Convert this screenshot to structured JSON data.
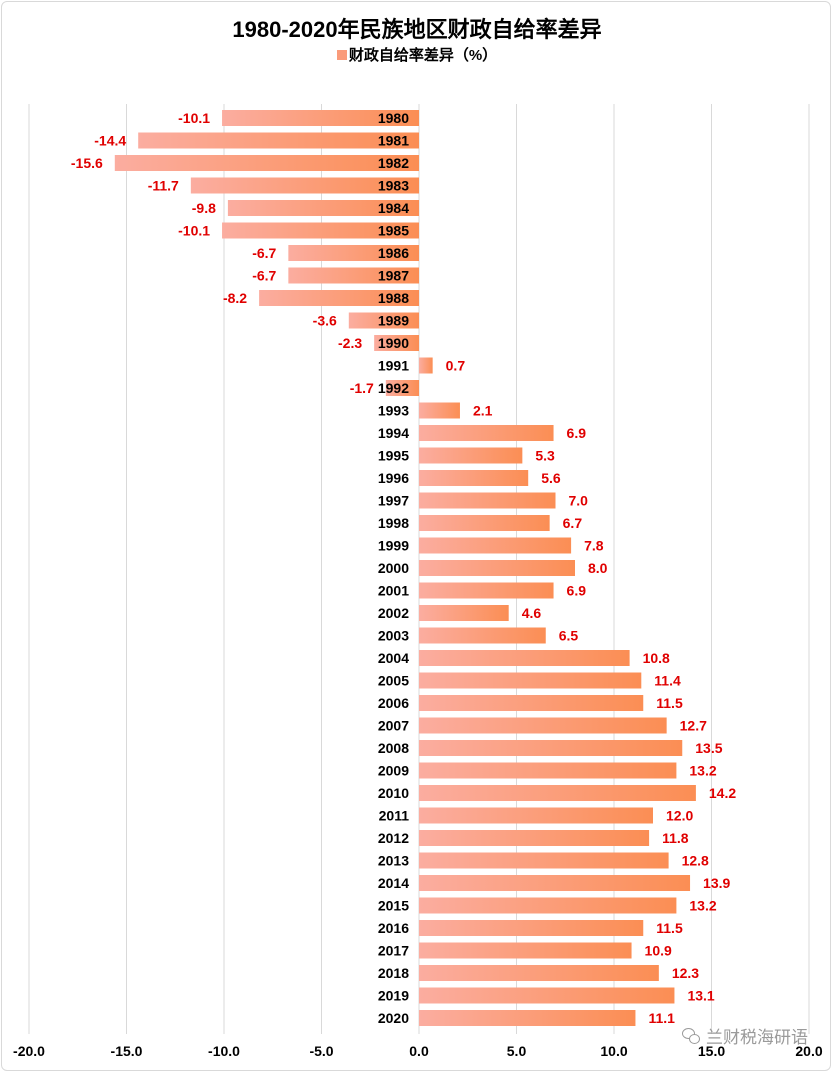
{
  "chart_data": {
    "type": "bar",
    "orientation": "horizontal",
    "title": "1980-2020年民族地区财政自给率差异",
    "legend": {
      "position": "top",
      "entries": [
        "财政自给率差异（%）"
      ]
    },
    "series": [
      {
        "name": "财政自给率差异（%）",
        "color": "#fa9b7a",
        "values": [
          -10.1,
          -14.4,
          -15.6,
          -11.7,
          -9.8,
          -10.1,
          -6.7,
          -6.7,
          -8.2,
          -3.6,
          -2.3,
          0.7,
          -1.7,
          2.1,
          6.9,
          5.3,
          5.6,
          7.0,
          6.7,
          7.8,
          8.0,
          6.9,
          4.6,
          6.5,
          10.8,
          11.4,
          11.5,
          12.7,
          13.5,
          13.2,
          14.2,
          12.0,
          11.8,
          12.8,
          13.9,
          13.2,
          11.5,
          10.9,
          12.3,
          13.1,
          11.1
        ],
        "labels": [
          "-10.1",
          "-14.4",
          "-15.6",
          "-11.7",
          "-9.8",
          "-10.1",
          "-6.7",
          "-6.7",
          "-8.2",
          "-3.6",
          "-2.3",
          "0.7",
          "-1.7",
          "2.1",
          "6.9",
          "5.3",
          "5.6",
          "7.0",
          "6.7",
          "7.8",
          "8.0",
          "6.9",
          "4.6",
          "6.5",
          "10.8",
          "11.4",
          "11.5",
          "12.7",
          "13.5",
          "13.2",
          "14.2",
          "12.0",
          "11.8",
          "12.8",
          "13.9",
          "13.2",
          "11.5",
          "10.9",
          "12.3",
          "13.1",
          "11.1"
        ]
      }
    ],
    "categories": [
      "1980",
      "1981",
      "1982",
      "1983",
      "1984",
      "1985",
      "1986",
      "1987",
      "1988",
      "1989",
      "1990",
      "1991",
      "1992",
      "1993",
      "1994",
      "1995",
      "1996",
      "1997",
      "1998",
      "1999",
      "2000",
      "2001",
      "2002",
      "2003",
      "2004",
      "2005",
      "2006",
      "2007",
      "2008",
      "2009",
      "2010",
      "2011",
      "2012",
      "2013",
      "2014",
      "2015",
      "2016",
      "2017",
      "2018",
      "2019",
      "2020"
    ],
    "xlim": [
      -20,
      20
    ],
    "xticks": [
      -20,
      -15,
      -10,
      -5,
      0,
      5,
      10,
      15,
      20
    ],
    "xtick_labels": [
      "-20.0",
      "-15.0",
      "-10.0",
      "-5.0",
      "0.0",
      "5.0",
      "10.0",
      "15.0",
      "20.0"
    ],
    "grid": "vertical",
    "label_color": "#e00000",
    "bar_gradient": [
      "#fbada0",
      "#fb8e54"
    ]
  },
  "watermark": {
    "text": "兰财税海研语",
    "icon": "wechat-icon"
  }
}
